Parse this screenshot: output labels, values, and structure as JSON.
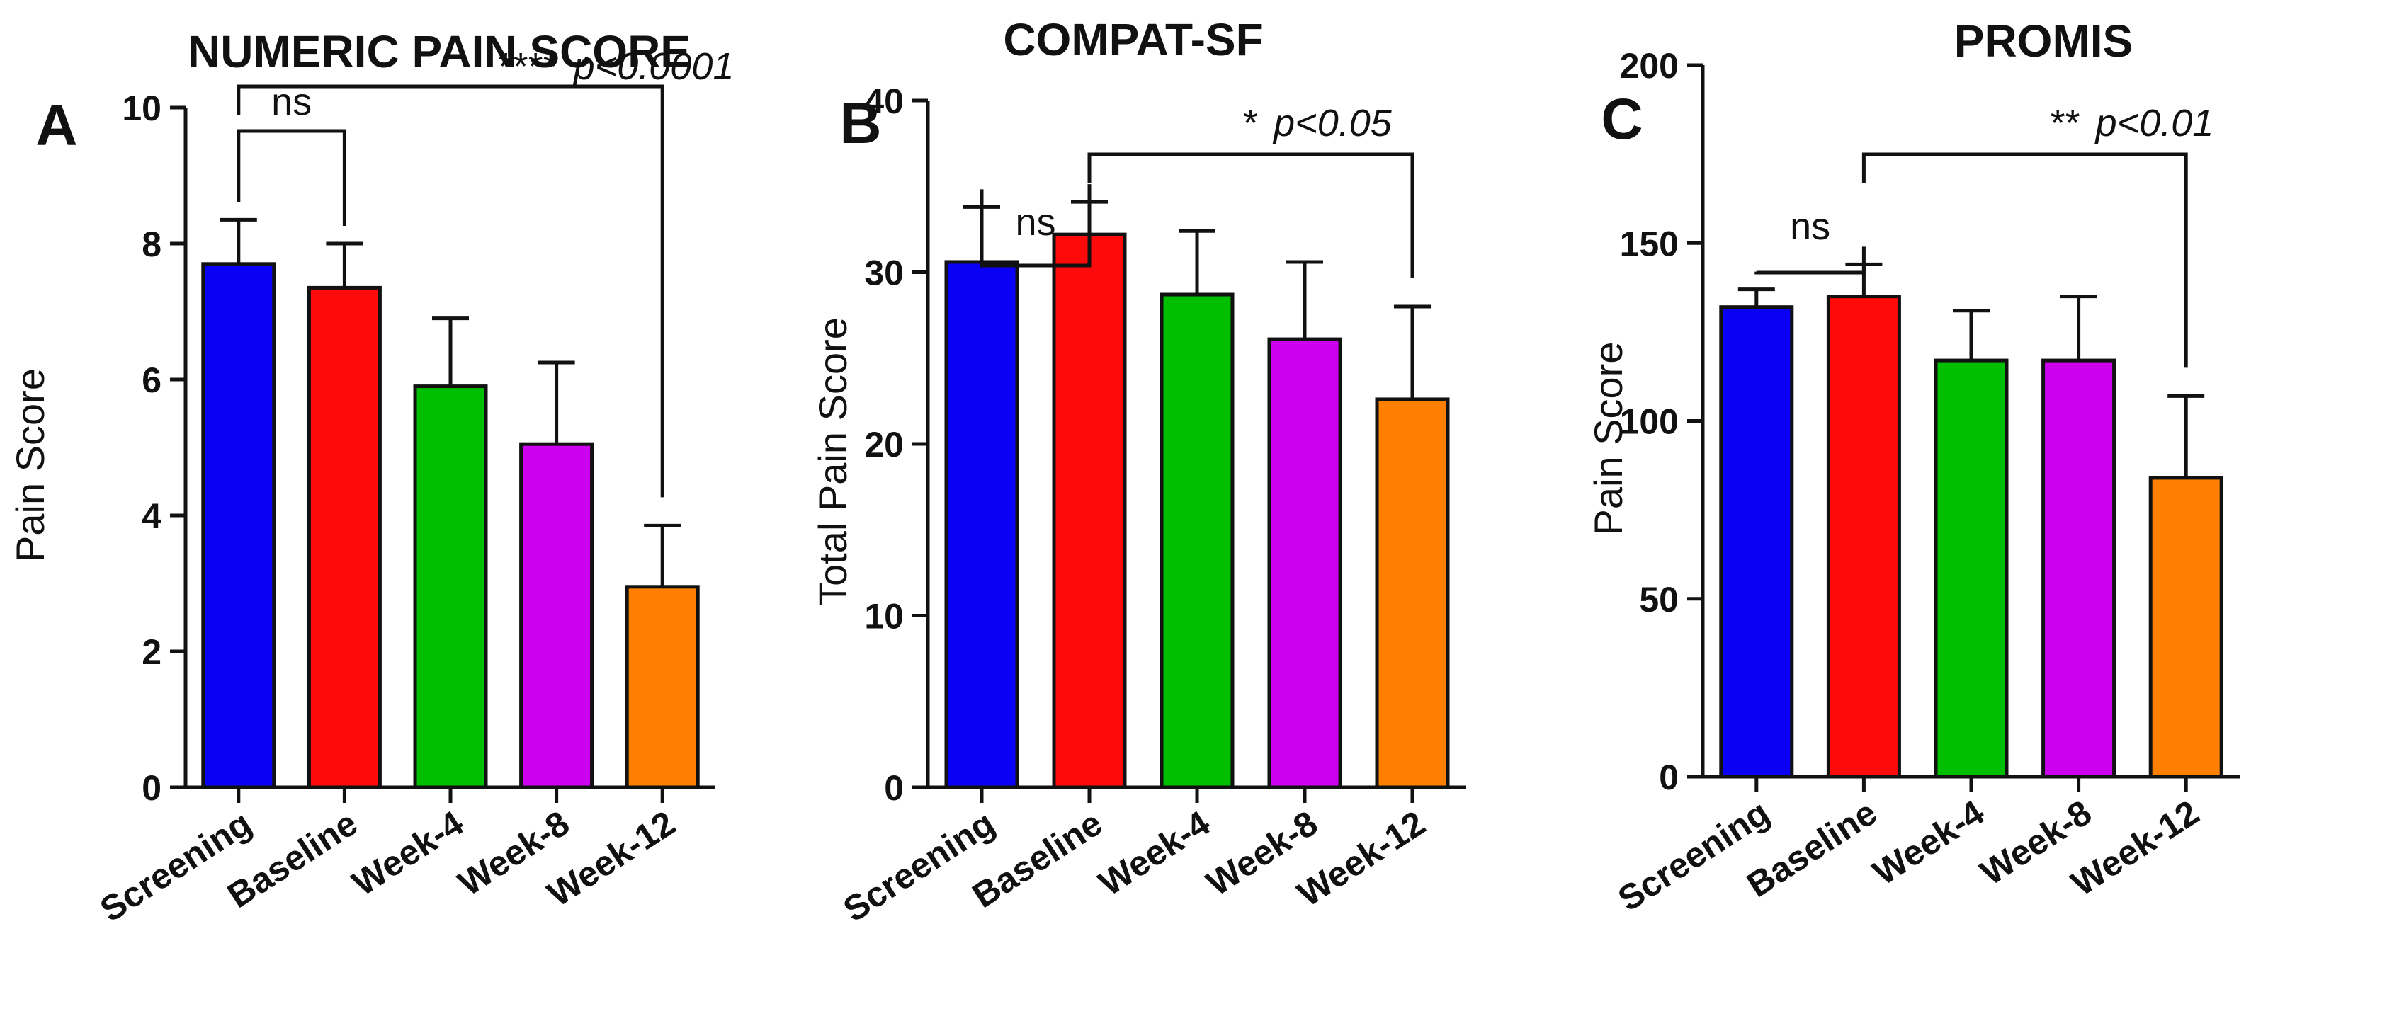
{
  "chart_data": [
    {
      "type": "bar",
      "panel": "A",
      "title": "NUMERIC PAIN SCORE",
      "xlabel": "",
      "ylabel": "Pain Score",
      "ylim": [
        0,
        10
      ],
      "yticks": [
        0,
        2,
        4,
        6,
        8,
        10
      ],
      "categories": [
        "Screening",
        "Baseline",
        "Week-4",
        "Week-8",
        "Week-12"
      ],
      "values": [
        7.7,
        7.35,
        5.9,
        5.05,
        2.95
      ],
      "errors": [
        0.65,
        0.65,
        1.0,
        1.2,
        0.9
      ],
      "colors": [
        "#0a00f5",
        "#ff0a0a",
        "#00bf00",
        "#cc00ee",
        "#ff7f00"
      ],
      "comparisons": [
        {
          "from": "Screening",
          "to": "Baseline",
          "stars": "",
          "label": "ns",
          "p": ""
        },
        {
          "from": "Screening",
          "to": "Week-12",
          "stars": "****",
          "label": "",
          "p": "p<0.0001"
        }
      ]
    },
    {
      "type": "bar",
      "panel": "B",
      "title": "COMPAT-SF",
      "xlabel": "",
      "ylabel": "Total Pain Score",
      "ylim": [
        0,
        40
      ],
      "yticks": [
        0,
        10,
        20,
        30,
        40
      ],
      "categories": [
        "Screening",
        "Baseline",
        "Week-4",
        "Week-8",
        "Week-12"
      ],
      "values": [
        30.6,
        32.2,
        28.7,
        26.1,
        22.6
      ],
      "errors": [
        3.2,
        1.9,
        3.7,
        4.5,
        5.4
      ],
      "colors": [
        "#0a00f5",
        "#ff0a0a",
        "#00bf00",
        "#cc00ee",
        "#ff7f00"
      ],
      "comparisons": [
        {
          "from": "Screening",
          "to": "Baseline",
          "stars": "",
          "label": "ns",
          "p": ""
        },
        {
          "from": "Baseline",
          "to": "Week-12",
          "stars": "*",
          "label": "",
          "p": "p<0.05"
        }
      ]
    },
    {
      "type": "bar",
      "panel": "C",
      "title": "PROMIS",
      "xlabel": "",
      "ylabel": "Pain  Score",
      "ylim": [
        0,
        200
      ],
      "yticks": [
        0,
        50,
        100,
        150,
        200
      ],
      "categories": [
        "Screening",
        "Baseline",
        "Week-4",
        "Week-8",
        "Week-12"
      ],
      "values": [
        132,
        135,
        117,
        117,
        84
      ],
      "errors": [
        5,
        9,
        14,
        18,
        23
      ],
      "colors": [
        "#0a00f5",
        "#ff0a0a",
        "#00bf00",
        "#cc00ee",
        "#ff7f00"
      ],
      "comparisons": [
        {
          "from": "Screening",
          "to": "Baseline",
          "stars": "",
          "label": "ns",
          "p": ""
        },
        {
          "from": "Baseline",
          "to": "Week-12",
          "stars": "**",
          "label": "",
          "p": "p<0.01"
        }
      ]
    }
  ]
}
